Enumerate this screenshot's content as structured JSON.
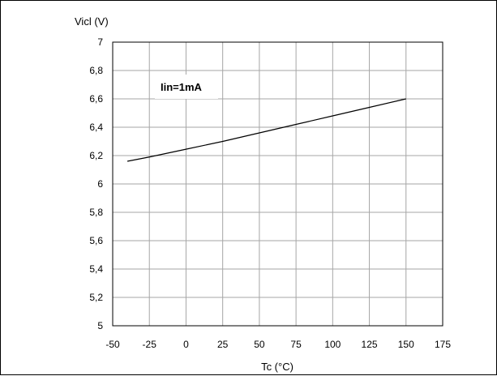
{
  "chart_data": {
    "type": "line",
    "title": "",
    "xlabel": "Tc (°C)",
    "ylabel": "Vicl (V)",
    "xlim": [
      -50,
      175
    ],
    "ylim": [
      5,
      7
    ],
    "x_ticks": [
      -50,
      -25,
      0,
      25,
      50,
      75,
      100,
      125,
      150,
      175
    ],
    "x_tick_labels": [
      "-50",
      "-25",
      "0",
      "25",
      "50",
      "75",
      "100",
      "125",
      "150",
      "175"
    ],
    "y_ticks": [
      5,
      5.2,
      5.4,
      5.6,
      5.8,
      6,
      6.2,
      6.4,
      6.6,
      6.8,
      7
    ],
    "y_tick_labels": [
      "5",
      "5,2",
      "5,4",
      "5,6",
      "5,8",
      "6",
      "6,2",
      "6,4",
      "6,6",
      "6,8",
      "7"
    ],
    "grid": true,
    "annotation": "Iin=1mA",
    "line_color": "#000000",
    "series": [
      {
        "x": [
          -40,
          -25,
          0,
          25,
          50,
          75,
          100,
          125,
          150
        ],
        "values": [
          6.16,
          6.19,
          6.245,
          6.3,
          6.36,
          6.42,
          6.48,
          6.54,
          6.6
        ]
      }
    ]
  }
}
